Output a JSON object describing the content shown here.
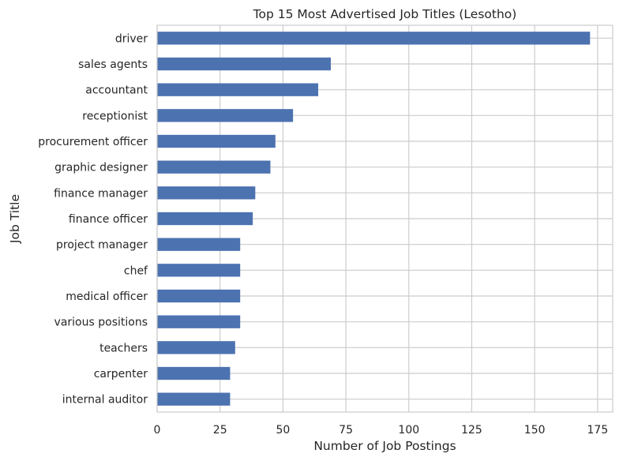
{
  "chart_data": {
    "type": "bar",
    "orientation": "horizontal",
    "title": "Top 15 Most Advertised Job Titles (Lesotho)",
    "xlabel": "Number of Job Postings",
    "ylabel": "Job Title",
    "categories": [
      "driver",
      "sales agents",
      "accountant",
      "receptionist",
      "procurement officer",
      "graphic designer",
      "finance manager",
      "finance officer",
      "project manager",
      "chef",
      "medical officer",
      "various positions",
      "teachers",
      "carpenter",
      "internal auditor"
    ],
    "values": [
      172,
      69,
      64,
      54,
      47,
      45,
      39,
      38,
      33,
      33,
      33,
      33,
      31,
      29,
      29
    ],
    "xlim": [
      0,
      181
    ],
    "xticks": [
      0,
      25,
      50,
      75,
      100,
      125,
      150,
      175
    ],
    "grid": true,
    "bar_color": "#4c72b0"
  }
}
